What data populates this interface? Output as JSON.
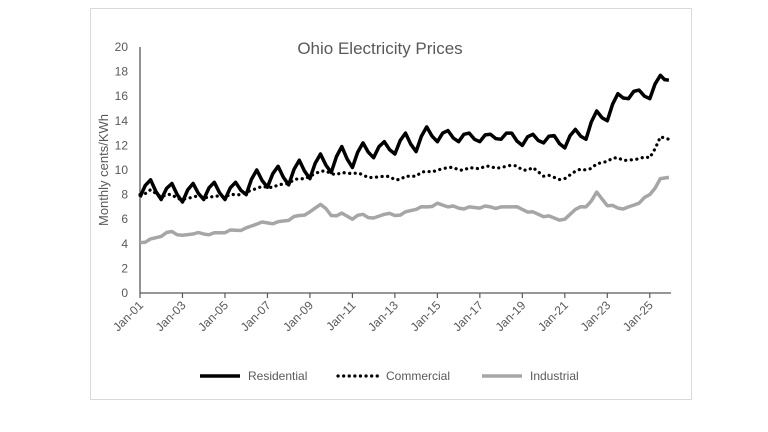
{
  "chart_data": {
    "type": "line",
    "title": "Ohio Electricity Prices",
    "xlabel": "",
    "ylabel": "Monthly cents/KWh",
    "ylim": [
      0,
      20
    ],
    "yticks": [
      "0",
      "2",
      "4",
      "6",
      "8",
      "10",
      "12",
      "14",
      "16",
      "18",
      "20"
    ],
    "xlim": [
      2001,
      2026
    ],
    "xticks": [
      "Jan-01",
      "Jan-03",
      "Jan-05",
      "Jan-07",
      "Jan-09",
      "Jan-11",
      "Jan-13",
      "Jan-15",
      "Jan-17",
      "Jan-19",
      "Jan-21",
      "Jan-23",
      "Jan-25"
    ],
    "grid": false,
    "legend": "bottom",
    "x": [
      2001,
      2001.5,
      2002,
      2002.5,
      2003,
      2003.5,
      2004,
      2004.5,
      2005,
      2005.5,
      2006,
      2006.5,
      2007,
      2007.5,
      2008,
      2008.5,
      2009,
      2009.5,
      2010,
      2010.5,
      2011,
      2011.5,
      2012,
      2012.5,
      2013,
      2013.5,
      2014,
      2014.5,
      2015,
      2015.5,
      2016,
      2016.5,
      2017,
      2017.5,
      2018,
      2018.5,
      2019,
      2019.5,
      2020,
      2020.5,
      2021,
      2021.5,
      2022,
      2022.5,
      2023,
      2023.5,
      2024,
      2024.5,
      2025,
      2025.5,
      2025.9
    ],
    "series": [
      {
        "name": "Residential",
        "color": "#000000",
        "style": "solid",
        "values": [
          7.8,
          9.2,
          7.6,
          8.9,
          7.4,
          8.9,
          7.6,
          9.0,
          7.6,
          9.0,
          8.0,
          10.0,
          8.6,
          10.3,
          8.8,
          10.8,
          9.3,
          11.3,
          9.8,
          11.9,
          10.2,
          12.2,
          11.0,
          12.3,
          11.3,
          13.0,
          11.5,
          13.5,
          12.3,
          13.2,
          12.3,
          13.0,
          12.3,
          12.9,
          12.5,
          13.0,
          12.0,
          12.9,
          12.2,
          12.8,
          11.8,
          13.3,
          12.5,
          14.8,
          14.0,
          16.2,
          15.8,
          16.5,
          15.8,
          17.7,
          17.3
        ]
      },
      {
        "name": "Commercial",
        "color": "#000000",
        "style": "dotted",
        "values": [
          8.0,
          8.4,
          7.8,
          8.0,
          7.6,
          7.8,
          7.8,
          7.9,
          7.8,
          8.0,
          8.2,
          8.5,
          8.6,
          8.8,
          8.9,
          9.3,
          9.5,
          9.9,
          9.7,
          9.8,
          9.7,
          9.6,
          9.4,
          9.5,
          9.2,
          9.5,
          9.5,
          9.9,
          10.0,
          10.2,
          10.0,
          10.2,
          10.1,
          10.3,
          10.2,
          10.4,
          10.0,
          10.2,
          9.5,
          9.4,
          9.3,
          9.9,
          10.0,
          10.5,
          10.7,
          11.0,
          10.8,
          10.9,
          11.0,
          12.7,
          12.5
        ]
      },
      {
        "name": "Industrial",
        "color": "#a6a6a6",
        "style": "solid",
        "values": [
          4.1,
          4.4,
          4.6,
          5.0,
          4.7,
          4.8,
          4.8,
          4.9,
          4.9,
          5.1,
          5.3,
          5.6,
          5.7,
          5.8,
          5.9,
          6.3,
          6.6,
          7.2,
          6.3,
          6.5,
          6.0,
          6.4,
          6.1,
          6.4,
          6.3,
          6.6,
          6.8,
          7.0,
          7.3,
          7.0,
          6.9,
          7.0,
          6.9,
          7.0,
          7.0,
          7.0,
          6.8,
          6.6,
          6.2,
          6.1,
          6.0,
          6.8,
          7.0,
          8.2,
          7.1,
          6.9,
          7.0,
          7.3,
          8.0,
          9.3,
          9.4
        ]
      }
    ]
  }
}
